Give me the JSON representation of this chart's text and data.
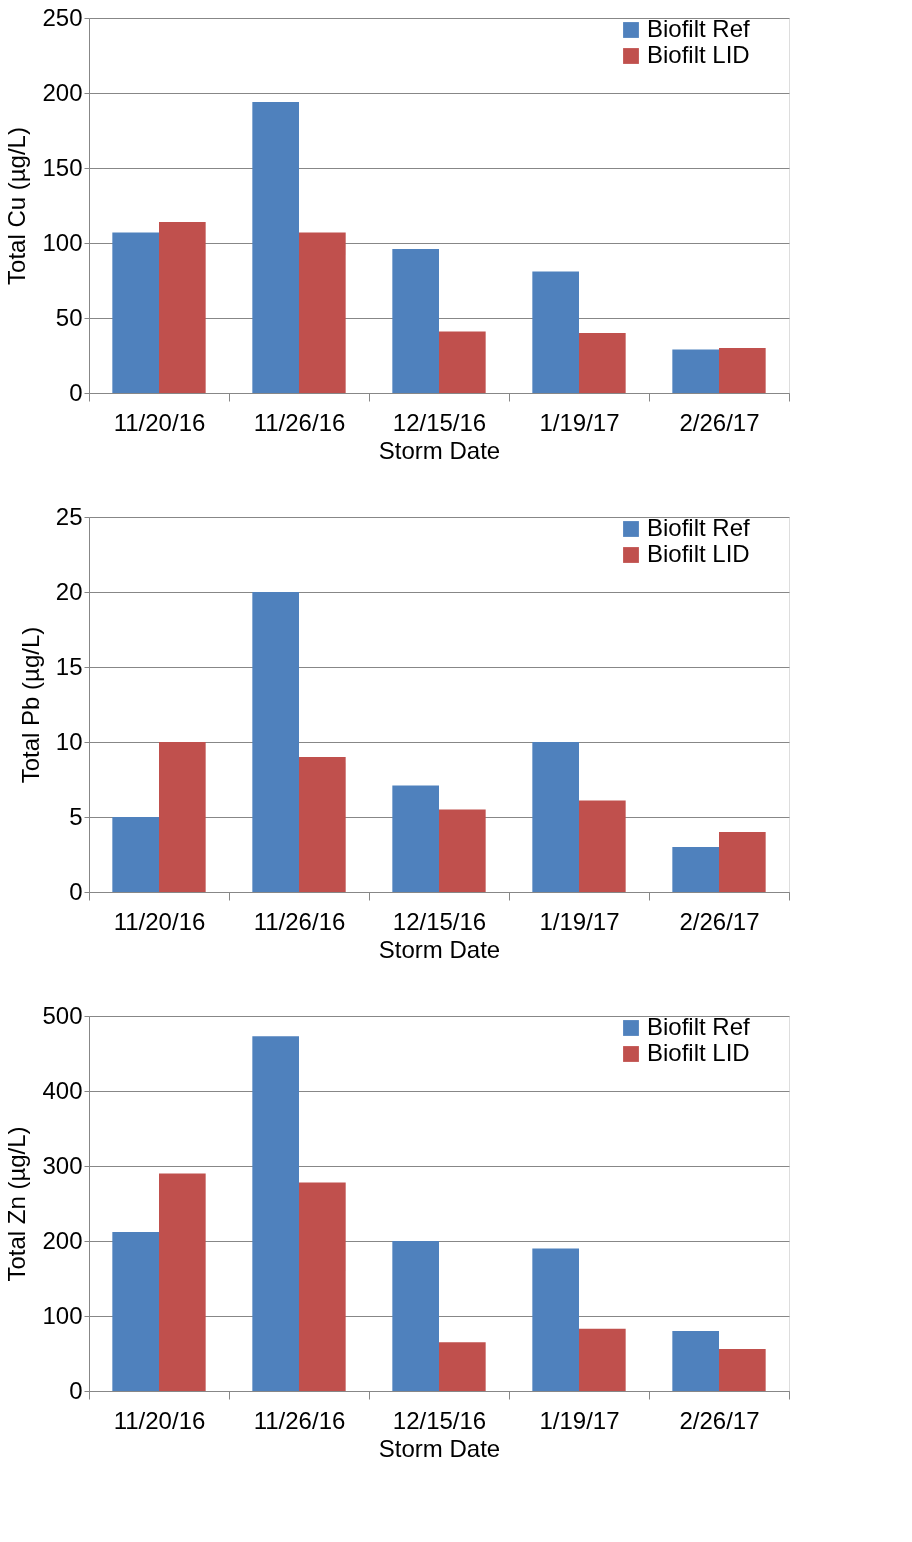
{
  "chart_data": [
    {
      "type": "bar",
      "xlabel": "Storm Date",
      "ylabel": "Total Cu (µg/L)",
      "categories": [
        "11/20/16",
        "11/26/16",
        "12/15/16",
        "1/19/17",
        "2/26/17"
      ],
      "ylim": [
        0,
        250
      ],
      "yticks": [
        0,
        50,
        100,
        150,
        200,
        250
      ],
      "grid": "y",
      "legend": "right",
      "series": [
        {
          "name": "Biofilt Ref",
          "color": "#4f81bd",
          "values": [
            107,
            194,
            96,
            81,
            29
          ]
        },
        {
          "name": "Biofilt LID",
          "color": "#c0504d",
          "values": [
            114,
            107,
            41,
            40,
            30
          ]
        }
      ]
    },
    {
      "type": "bar",
      "xlabel": "Storm Date",
      "ylabel": "Total Pb (µg/L)",
      "categories": [
        "11/20/16",
        "11/26/16",
        "12/15/16",
        "1/19/17",
        "2/26/17"
      ],
      "ylim": [
        0,
        25
      ],
      "yticks": [
        0,
        5,
        10,
        15,
        20,
        25
      ],
      "grid": "y",
      "legend": "right",
      "series": [
        {
          "name": "Biofilt Ref",
          "color": "#4f81bd",
          "values": [
            5,
            20,
            7.1,
            10,
            3
          ]
        },
        {
          "name": "Biofilt LID",
          "color": "#c0504d",
          "values": [
            10,
            9,
            5.5,
            6.1,
            4
          ]
        }
      ]
    },
    {
      "type": "bar",
      "xlabel": "Storm Date",
      "ylabel": "Total Zn (µg/L)",
      "categories": [
        "11/20/16",
        "11/26/16",
        "12/15/16",
        "1/19/17",
        "2/26/17"
      ],
      "ylim": [
        0,
        500
      ],
      "yticks": [
        0,
        100,
        200,
        300,
        400,
        500
      ],
      "grid": "y",
      "legend": "right",
      "series": [
        {
          "name": "Biofilt Ref",
          "color": "#4f81bd",
          "values": [
            212,
            473,
            200,
            190,
            80
          ]
        },
        {
          "name": "Biofilt LID",
          "color": "#c0504d",
          "values": [
            290,
            278,
            65,
            83,
            56
          ]
        }
      ]
    }
  ]
}
